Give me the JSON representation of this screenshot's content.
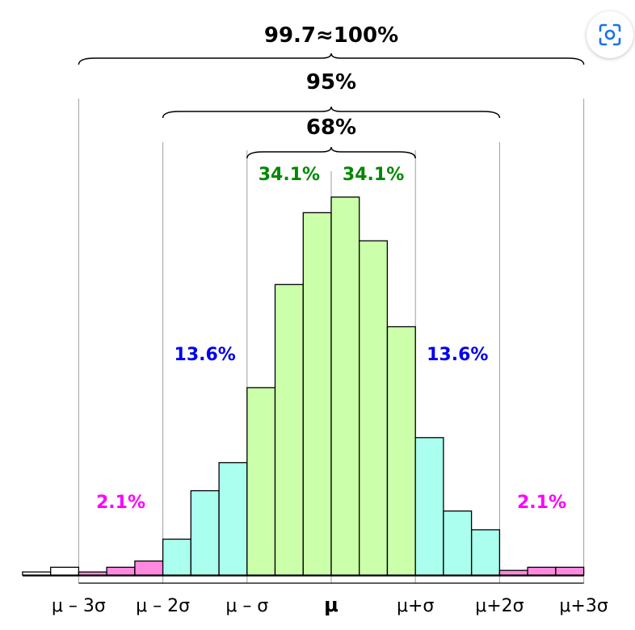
{
  "lens_button": {
    "icon": "lens-search-icon",
    "color": "#1a73e8"
  },
  "chart_data": {
    "type": "bar",
    "title": "",
    "xlabel": "",
    "ylabel": "",
    "x_ticks": [
      "μ – 3σ",
      "μ – 2σ",
      "μ – σ",
      "μ",
      "μ+σ",
      "μ+2σ",
      "μ+3σ"
    ],
    "bin_width_sigma": 0.333,
    "bins": [
      {
        "x0": -3.667,
        "height": 2,
        "band": "outside"
      },
      {
        "x0": -3.333,
        "height": 5,
        "band": "outside"
      },
      {
        "x0": -3.0,
        "height": 2,
        "band": "tail"
      },
      {
        "x0": -2.667,
        "height": 5,
        "band": "tail"
      },
      {
        "x0": -2.333,
        "height": 9,
        "band": "tail"
      },
      {
        "x0": -2.0,
        "height": 23,
        "band": "mid"
      },
      {
        "x0": -1.667,
        "height": 54,
        "band": "mid"
      },
      {
        "x0": -1.333,
        "height": 72,
        "band": "mid"
      },
      {
        "x0": -1.0,
        "height": 120,
        "band": "core"
      },
      {
        "x0": -0.667,
        "height": 186,
        "band": "core"
      },
      {
        "x0": -0.333,
        "height": 232,
        "band": "core"
      },
      {
        "x0": 0.0,
        "height": 242,
        "band": "core"
      },
      {
        "x0": 0.333,
        "height": 214,
        "band": "core"
      },
      {
        "x0": 0.667,
        "height": 159,
        "band": "core"
      },
      {
        "x0": 1.0,
        "height": 88,
        "band": "mid"
      },
      {
        "x0": 1.333,
        "height": 41,
        "band": "mid"
      },
      {
        "x0": 1.667,
        "height": 29,
        "band": "mid"
      },
      {
        "x0": 2.0,
        "height": 3,
        "band": "tail"
      },
      {
        "x0": 2.333,
        "height": 5,
        "band": "tail"
      },
      {
        "x0": 2.667,
        "height": 5,
        "band": "tail"
      }
    ],
    "ylim": [
      0,
      242
    ],
    "band_colors": {
      "outside": "#ffffff",
      "tail": "#ff88e0",
      "mid": "#aaffee",
      "core": "#ccffaa"
    },
    "brackets": [
      {
        "label": "99.7≈100%",
        "from": -3,
        "to": 3
      },
      {
        "label": "95%",
        "from": -2,
        "to": 2
      },
      {
        "label": "68%",
        "from": -1,
        "to": 1
      }
    ],
    "annotations": [
      {
        "text": "34.1%",
        "color": "#008800",
        "at": -0.5,
        "level": "top"
      },
      {
        "text": "34.1%",
        "color": "#008800",
        "at": 0.5,
        "level": "top"
      },
      {
        "text": "13.6%",
        "color": "#0000ee",
        "at": -1.5,
        "level": "middle"
      },
      {
        "text": "13.6%",
        "color": "#0000ee",
        "at": 1.5,
        "level": "middle"
      },
      {
        "text": "2.1%",
        "color": "#ff00ff",
        "at": -2.5,
        "level": "low"
      },
      {
        "text": "2.1%",
        "color": "#ff00ff",
        "at": 2.5,
        "level": "low"
      }
    ]
  }
}
